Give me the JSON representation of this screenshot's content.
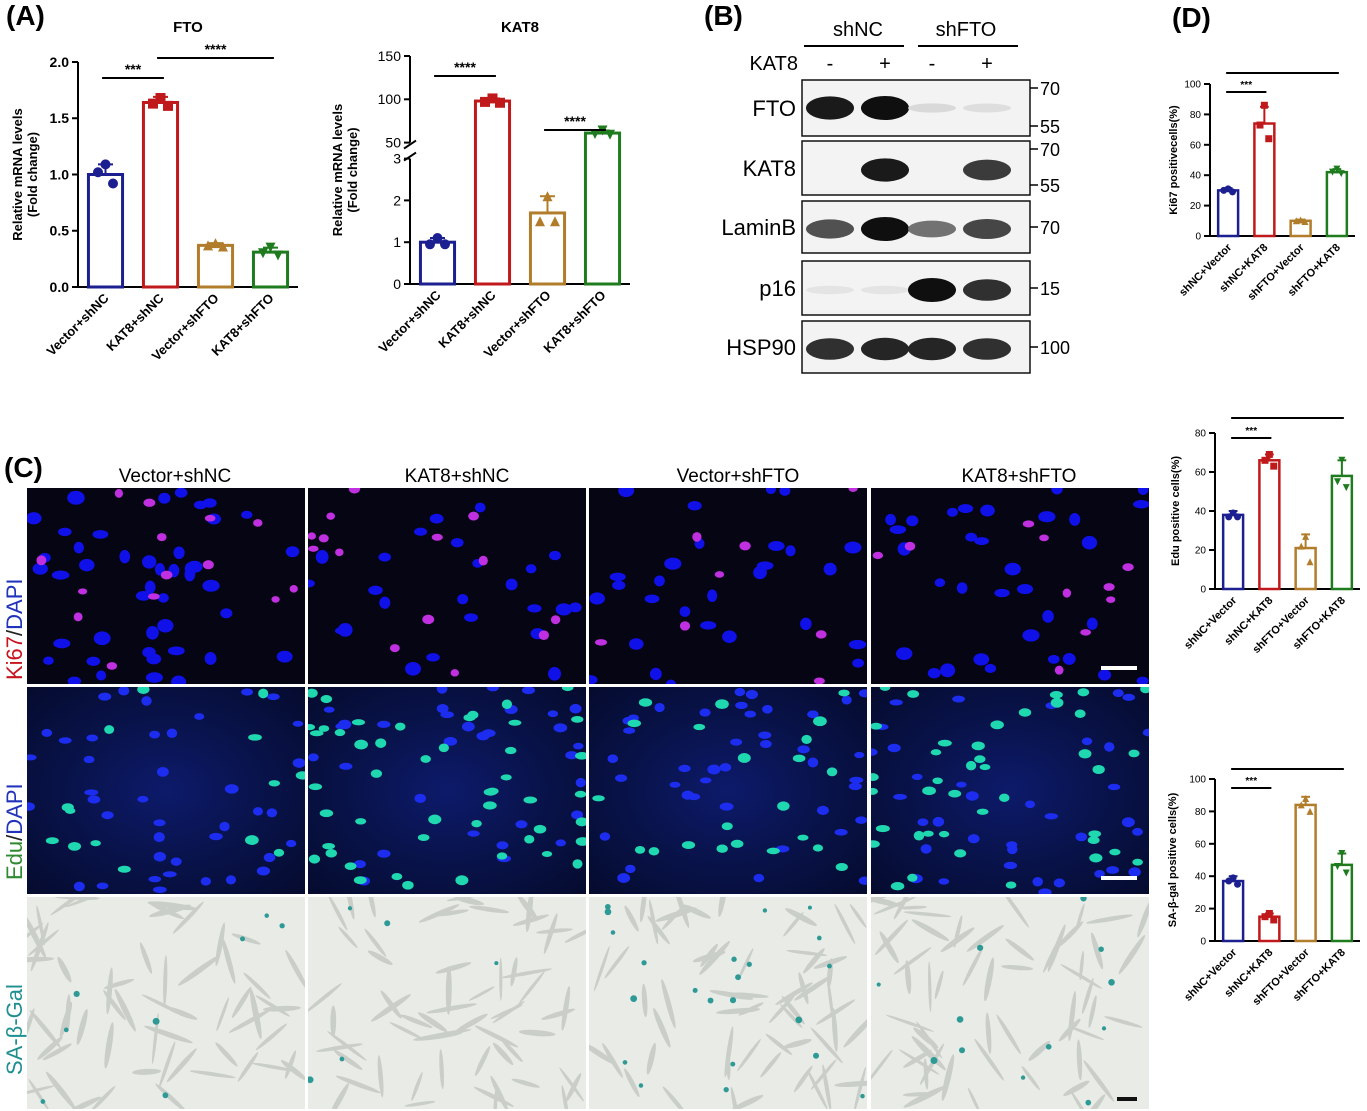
{
  "panel_labels": {
    "A": "(A)",
    "B": "(B)",
    "C": "(C)",
    "D": "(D)"
  },
  "colors": {
    "blue": "#1b1f8f",
    "red": "#c0191b",
    "tan": "#b17d2a",
    "green": "#1e7b1e"
  },
  "chart_data": [
    {
      "id": "fto",
      "type": "bar",
      "title": "FTO",
      "ylabel": "Relative mRNA levels\n(Fold change)",
      "categories": [
        "Vector+shNC",
        "KAT8+shNC",
        "Vector+shFTO",
        "KAT8+shFTO"
      ],
      "values": [
        1.0,
        1.64,
        0.37,
        0.31
      ],
      "errors": [
        0.09,
        0.05,
        0.02,
        0.04
      ],
      "points": [
        [
          1.09,
          1.02,
          0.92
        ],
        [
          1.68,
          1.63,
          1.61
        ],
        [
          0.39,
          0.37,
          0.36
        ],
        [
          0.35,
          0.3,
          0.28
        ]
      ],
      "ylim": [
        0,
        2.0
      ],
      "yticks": [
        "0.0",
        "0.5",
        "1.0",
        "1.5",
        "2.0"
      ],
      "sig": [
        {
          "from": 0,
          "to": 1,
          "label": "***"
        },
        {
          "from": 1,
          "to": 3,
          "label": "****"
        }
      ]
    },
    {
      "id": "kat8",
      "type": "bar",
      "title": "KAT8",
      "ylabel": "Relative mRNA levels\n(Fold change)",
      "categories": [
        "Vector+shNC",
        "KAT8+shNC",
        "Vector+shFTO",
        "KAT8+shFTO"
      ],
      "values": [
        1.0,
        98,
        1.7,
        61
      ],
      "errors": [
        0.1,
        3,
        0.4,
        3
      ],
      "points": [
        [
          1.1,
          0.95,
          0.95
        ],
        [
          101,
          97,
          96
        ],
        [
          2.1,
          1.5,
          1.5
        ],
        [
          64,
          60,
          59
        ]
      ],
      "ylim": [
        0,
        150
      ],
      "axis_break": [
        3,
        50
      ],
      "yticks": [
        "0",
        "1",
        "2",
        "3",
        "50",
        "100",
        "150"
      ],
      "sig": [
        {
          "from": 0,
          "to": 1,
          "label": "****"
        },
        {
          "from": 2,
          "to": 3,
          "label": "****"
        }
      ]
    },
    {
      "id": "ki67",
      "type": "bar",
      "ylabel": "Ki67 positivecells(%)",
      "categories": [
        "shNC+Vector",
        "shNC+KAT8",
        "shFTO+Vector",
        "shFTO+KAT8"
      ],
      "values": [
        30,
        74,
        10,
        42
      ],
      "errors": [
        1.5,
        11,
        0.8,
        2
      ],
      "points": [
        [
          31,
          30,
          29
        ],
        [
          86,
          73,
          64
        ],
        [
          10.5,
          10,
          9.5
        ],
        [
          44,
          42,
          41
        ]
      ],
      "ylim": [
        0,
        100
      ],
      "yticks": [
        "0",
        "20",
        "40",
        "60",
        "80",
        "100"
      ],
      "sig": [
        {
          "from": 0,
          "to": 1,
          "label": "***"
        },
        {
          "from": 0,
          "to": 2,
          "label": "*"
        },
        {
          "from": 2,
          "to": 3,
          "label": "****"
        }
      ]
    },
    {
      "id": "edu",
      "type": "bar",
      "ylabel": "Edu positive cells(%)",
      "categories": [
        "shNC+Vector",
        "shNC+KAT8",
        "shFTO+Vector",
        "shFTO+KAT8"
      ],
      "values": [
        38,
        66,
        21,
        58
      ],
      "errors": [
        2,
        3,
        7,
        8
      ],
      "points": [
        [
          39,
          37,
          37
        ],
        [
          69,
          66,
          63
        ],
        [
          27,
          22,
          14
        ],
        [
          66,
          55,
          52
        ]
      ],
      "ylim": [
        0,
        80
      ],
      "yticks": [
        "0",
        "20",
        "40",
        "60",
        "80"
      ],
      "sig": [
        {
          "from": 0,
          "to": 1,
          "label": "***"
        },
        {
          "from": 0,
          "to": 2,
          "label": "**"
        },
        {
          "from": 2,
          "to": 3,
          "label": "**"
        }
      ]
    },
    {
      "id": "sagal",
      "type": "bar",
      "ylabel": "SA-β-gal positive cells(%)",
      "categories": [
        "shNC+Vector",
        "shNC+KAT8",
        "shFTO+Vector",
        "shFTO+KAT8"
      ],
      "values": [
        37,
        15,
        84,
        47
      ],
      "errors": [
        3,
        2,
        5,
        7
      ],
      "points": [
        [
          39,
          37,
          35
        ],
        [
          17,
          15,
          13
        ],
        [
          88,
          84,
          80
        ],
        [
          54,
          46,
          42
        ]
      ],
      "ylim": [
        0,
        100
      ],
      "yticks": [
        "0",
        "20",
        "40",
        "60",
        "80",
        "100"
      ],
      "sig": [
        {
          "from": 0,
          "to": 1,
          "label": "***"
        },
        {
          "from": 0,
          "to": 2,
          "label": "****"
        },
        {
          "from": 2,
          "to": 3,
          "label": "**"
        }
      ]
    }
  ],
  "western": {
    "groups": [
      "shNC",
      "shFTO"
    ],
    "kat8_label": "KAT8",
    "lane_signs": [
      "-",
      "+",
      "-",
      "+"
    ],
    "blots": [
      {
        "name": "FTO",
        "markers": [
          "70",
          "55"
        ],
        "intensity": [
          0.95,
          1.0,
          0.08,
          0.06
        ]
      },
      {
        "name": "KAT8",
        "markers": [
          "70",
          "55"
        ],
        "intensity": [
          0.0,
          0.95,
          0.0,
          0.8
        ]
      },
      {
        "name": "LaminB",
        "markers": [
          "70"
        ],
        "intensity": [
          0.7,
          1.0,
          0.55,
          0.75
        ]
      },
      {
        "name": "p16",
        "markers": [
          "15"
        ],
        "intensity": [
          0.03,
          0.03,
          1.0,
          0.85
        ]
      },
      {
        "name": "HSP90",
        "markers": [
          "100"
        ],
        "intensity": [
          0.85,
          0.9,
          0.9,
          0.85
        ]
      }
    ]
  },
  "microscopy": {
    "columns": [
      "Vector+shNC",
      "KAT8+shNC",
      "Vector+shFTO",
      "KAT8+shFTO"
    ],
    "rows": [
      {
        "stain_a": "Ki67",
        "sep": "/",
        "stain_b": "DAPI"
      },
      {
        "stain_a": "Edu",
        "sep": "/",
        "stain_b": "DAPI"
      },
      {
        "stain_a": "SA-β-Gal",
        "sep": "",
        "stain_b": ""
      }
    ]
  }
}
